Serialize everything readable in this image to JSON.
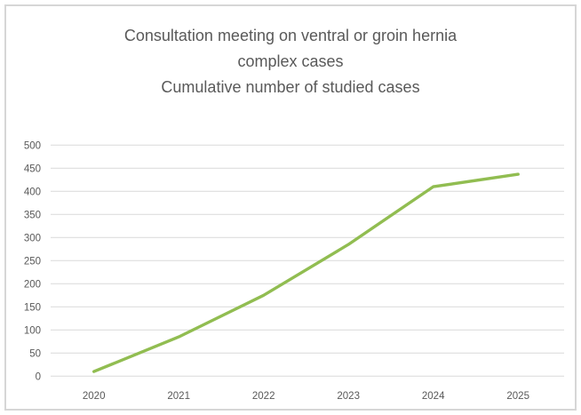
{
  "title": {
    "line1": "Consultation meeting on ventral or groin hernia complex cases",
    "line2": "Cumulative number of studied cases"
  },
  "chart_data": {
    "type": "line",
    "title": "Consultation meeting on ventral or groin hernia complex cases",
    "subtitle": "Cumulative number of studied cases",
    "categories": [
      "2020",
      "2021",
      "2022",
      "2023",
      "2024",
      "2025"
    ],
    "series": [
      {
        "name": "Cumulative number of studied cases",
        "values": [
          10,
          85,
          175,
          285,
          410,
          437
        ]
      }
    ],
    "xlabel": "",
    "ylabel": "",
    "ylim": [
      0,
      500
    ],
    "ytick_step": 50,
    "grid": "horizontal",
    "legend_position": "none"
  },
  "colors": {
    "line": "#91bd51",
    "gridline": "#d9d9d9",
    "text": "#595959",
    "border": "#d6d6d6",
    "background": "#ffffff"
  }
}
